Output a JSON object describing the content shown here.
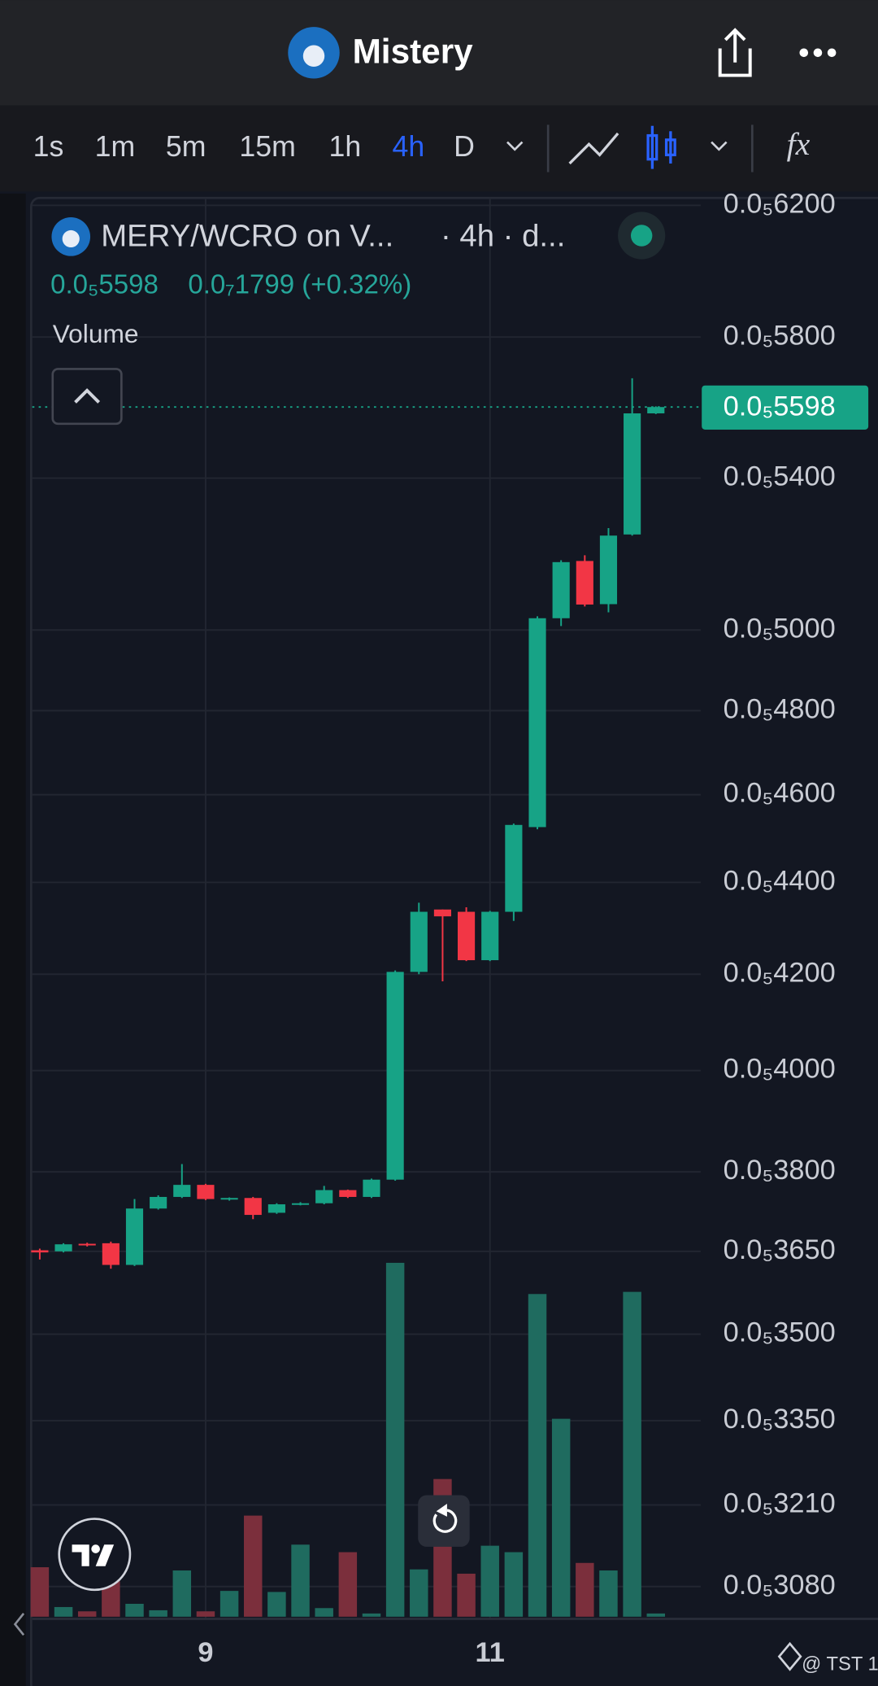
{
  "header": {
    "title": "Mistery"
  },
  "toolbar": {
    "intervals": [
      "1s",
      "1m",
      "5m",
      "15m",
      "1h",
      "4h",
      "D"
    ],
    "active_interval": 5,
    "indicators": "fx"
  },
  "chart_info": {
    "symbol": "MERY/WCRO on V...",
    "resolution": "· 4h · d...",
    "last_price": "0.0₅5598",
    "change": "0.0₇1799 (+0.32%)",
    "volume_label": "Volume"
  },
  "chart_data": {
    "type": "candlestick",
    "log_scale": true,
    "grid": true,
    "up_color": "#17a386",
    "down_color": "#f23645",
    "up_volume_color": "#1f6b5f",
    "down_volume_color": "#7b2f3c",
    "categories": [
      null,
      null,
      null,
      null,
      null,
      null,
      null,
      "9",
      null,
      null,
      null,
      null,
      null,
      null,
      null,
      null,
      null,
      null,
      null,
      "11",
      null,
      null,
      null,
      null,
      null,
      null,
      null
    ],
    "open": [
      3.652e-06,
      3.65e-06,
      3.664e-06,
      3.665e-06,
      3.625e-06,
      3.73e-06,
      3.752e-06,
      3.775e-06,
      3.748e-06,
      3.75e-06,
      3.722e-06,
      3.738e-06,
      3.74e-06,
      3.765e-06,
      3.752e-06,
      3.785e-06,
      4.205e-06,
      4.34e-06,
      4.335e-06,
      4.23e-06,
      4.335e-06,
      4.525e-06,
      5.03e-06,
      5.178e-06,
      5.066e-06,
      5.248e-06,
      5.58e-06
    ],
    "high": [
      3.655e-06,
      3.665e-06,
      3.666e-06,
      3.668e-06,
      3.748e-06,
      3.755e-06,
      3.815e-06,
      3.777e-06,
      3.751e-06,
      3.752e-06,
      3.74e-06,
      3.742e-06,
      3.773e-06,
      3.766e-06,
      3.787e-06,
      4.208e-06,
      4.355e-06,
      4.34e-06,
      4.345e-06,
      4.337e-06,
      4.533e-06,
      5.035e-06,
      5.18e-06,
      5.193e-06,
      5.265e-06,
      5.68e-06,
      5.6e-06
    ],
    "low": [
      3.635e-06,
      3.648e-06,
      3.659e-06,
      3.618e-06,
      3.623e-06,
      3.728e-06,
      3.75e-06,
      3.746e-06,
      3.745e-06,
      3.71e-06,
      3.72e-06,
      3.736e-06,
      3.738e-06,
      3.75e-06,
      3.75e-06,
      3.783e-06,
      4.2e-06,
      4.185e-06,
      4.228e-06,
      4.228e-06,
      4.315e-06,
      4.52e-06,
      5.01e-06,
      5.06e-06,
      5.045e-06,
      5.245e-06,
      5.578e-06
    ],
    "close": [
      3.648e-06,
      3.663e-06,
      3.661e-06,
      3.625e-06,
      3.73e-06,
      3.752e-06,
      3.775e-06,
      3.748e-06,
      3.75e-06,
      3.718e-06,
      3.738e-06,
      3.74e-06,
      3.765e-06,
      3.752e-06,
      3.785e-06,
      4.205e-06,
      4.335e-06,
      4.325e-06,
      4.23e-06,
      4.335e-06,
      4.53e-06,
      5.03e-06,
      5.175e-06,
      5.065e-06,
      5.245e-06,
      5.58e-06,
      5.598e-06
    ],
    "volume": [
      46,
      9,
      5,
      33,
      12,
      6,
      43,
      5,
      24,
      94,
      23,
      67,
      8,
      60,
      3,
      329,
      44,
      128,
      40,
      66,
      60,
      300,
      184,
      50,
      43,
      302,
      3
    ],
    "last_value_label": "0.0₅5598",
    "ylim": [
      3.03e-06,
      6.22e-06
    ],
    "yticks": [
      {
        "value": 6.2e-06,
        "label": "0.0₅6200"
      },
      {
        "value": 5.8e-06,
        "label": "0.0₅5800"
      },
      {
        "value": 5.4e-06,
        "label": "0.0₅5400"
      },
      {
        "value": 5e-06,
        "label": "0.0₅5000"
      },
      {
        "value": 4.8e-06,
        "label": "0.0₅4800"
      },
      {
        "value": 4.6e-06,
        "label": "0.0₅4600"
      },
      {
        "value": 4.4e-06,
        "label": "0.0₅4400"
      },
      {
        "value": 4.2e-06,
        "label": "0.0₅4200"
      },
      {
        "value": 4e-06,
        "label": "0.0₅4000"
      },
      {
        "value": 3.8e-06,
        "label": "0.0₅3800"
      },
      {
        "value": 3.65e-06,
        "label": "0.0₅3650"
      },
      {
        "value": 3.5e-06,
        "label": "0.0₅3500"
      },
      {
        "value": 3.35e-06,
        "label": "0.0₅3350"
      },
      {
        "value": 3.21e-06,
        "label": "0.0₅3210"
      },
      {
        "value": 3.08e-06,
        "label": "0.0₅3080"
      }
    ]
  },
  "footer": {
    "watermark": "@ TST 1"
  }
}
